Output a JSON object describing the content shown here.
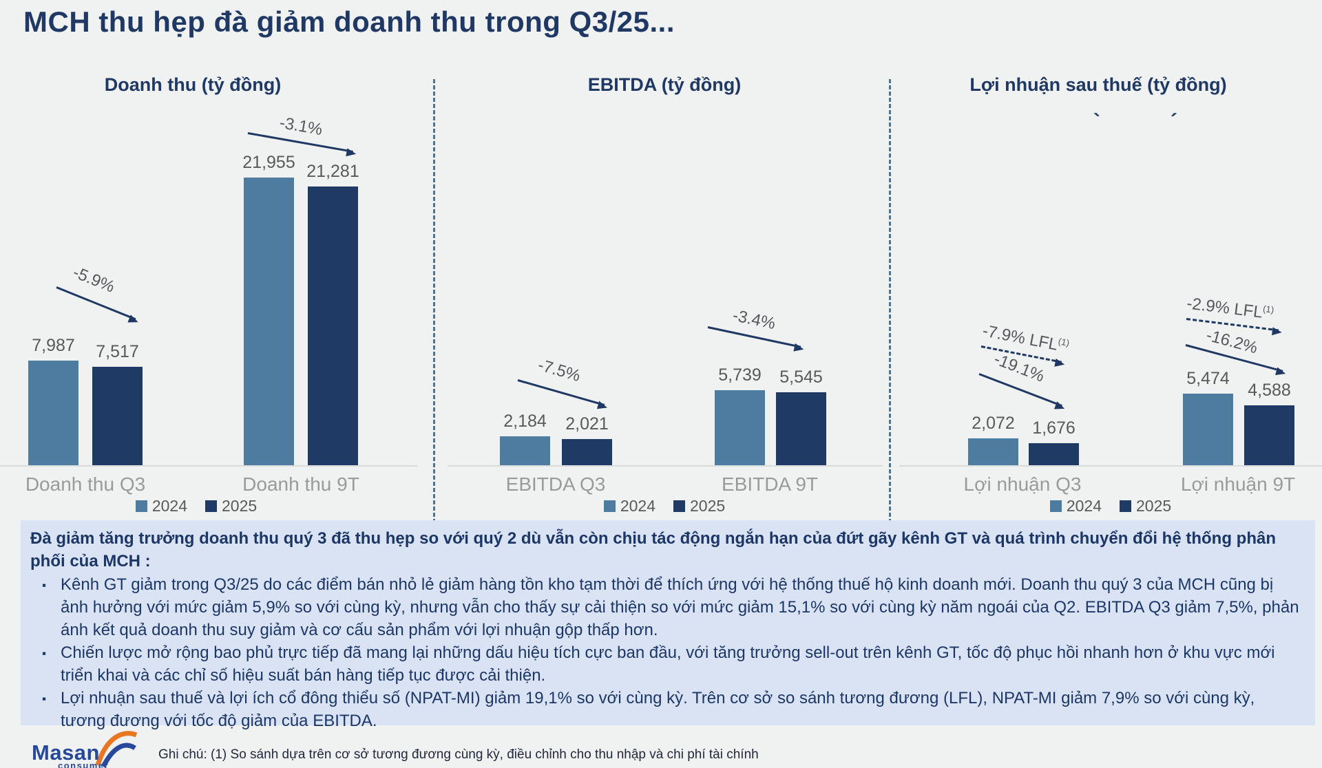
{
  "title": "MCH thu hẹp đà giảm doanh thu trong Q3/25...",
  "artifacts": {
    "grave": "`",
    "acute": "´"
  },
  "legend": {
    "y2024": "2024",
    "y2025": "2025"
  },
  "colors": {
    "background": "#f0f1f1",
    "navy": "#1f3864",
    "bar_2024": "#4e7ba0",
    "bar_2025": "#203a66",
    "note_box_bg": "#dae3f4",
    "category_label": "#9a9a9a",
    "value_label": "#595959"
  },
  "chart_data": [
    {
      "type": "bar",
      "title": "Doanh thu (tỷ đồng)",
      "categories": [
        "Doanh thu Q3",
        "Doanh thu 9T"
      ],
      "series": [
        {
          "name": "2024",
          "values": [
            7987,
            21955
          ],
          "labels": [
            "7,987",
            "21,955"
          ]
        },
        {
          "name": "2025",
          "values": [
            7517,
            21281
          ],
          "labels": [
            "7,517",
            "21,281"
          ]
        }
      ],
      "annotations": [
        {
          "group": 0,
          "label": "-5.9%",
          "style": "solid"
        },
        {
          "group": 1,
          "label": "-3.1%",
          "style": "solid"
        }
      ],
      "legend_position": "bottom",
      "grid": false
    },
    {
      "type": "bar",
      "title": "EBITDA (tỷ đồng)",
      "categories": [
        "EBITDA Q3",
        "EBITDA 9T"
      ],
      "series": [
        {
          "name": "2024",
          "values": [
            2184,
            5739
          ],
          "labels": [
            "2,184",
            "5,739"
          ]
        },
        {
          "name": "2025",
          "values": [
            2021,
            5545
          ],
          "labels": [
            "2,021",
            "5,545"
          ]
        }
      ],
      "annotations": [
        {
          "group": 0,
          "label": "-7.5%",
          "style": "solid"
        },
        {
          "group": 1,
          "label": "-3.4%",
          "style": "solid"
        }
      ],
      "legend_position": "bottom",
      "grid": false
    },
    {
      "type": "bar",
      "title": "Lợi nhuận sau thuế (tỷ đồng)",
      "categories": [
        "Lợi nhuận Q3",
        "Lợi nhuận 9T"
      ],
      "series": [
        {
          "name": "2024",
          "values": [
            2072,
            5474
          ],
          "labels": [
            "2,072",
            "5,474"
          ]
        },
        {
          "name": "2025",
          "values": [
            1676,
            4588
          ],
          "labels": [
            "1,676",
            "4,588"
          ]
        }
      ],
      "annotations": [
        {
          "group": 0,
          "label": "-7.9% LFL",
          "sup": "(1)",
          "style": "dashed"
        },
        {
          "group": 0,
          "label": "-19.1%",
          "style": "solid"
        },
        {
          "group": 1,
          "label": "-2.9% LFL",
          "sup": "(1)",
          "style": "dashed"
        },
        {
          "group": 1,
          "label": "-16.2%",
          "style": "solid"
        }
      ],
      "legend_position": "bottom",
      "grid": false
    }
  ],
  "note_box": {
    "heading": "Đà giảm tăng trưởng doanh thu quý 3 đã thu hẹp so với quý 2 dù vẫn còn chịu tác động ngắn hạn của đứt gãy kênh GT và quá trình chuyển đổi hệ thống phân phối của MCH :",
    "bullets": [
      "Kênh GT giảm trong Q3/25 do các điểm bán nhỏ lẻ giảm hàng tồn kho tạm thời để thích ứng với hệ thống thuế hộ kinh doanh mới. Doanh thu quý 3 của MCH cũng bị ảnh hưởng với mức giảm 5,9% so với cùng kỳ, nhưng vẫn cho thấy sự cải thiện so với mức giảm 15,1% so với cùng kỳ năm ngoái của Q2. EBITDA Q3 giảm 7,5%, phản ánh kết quả doanh thu suy giảm và cơ cấu sản phẩm với lợi nhuận gộp thấp hơn.",
      "Chiến lược mở rộng bao phủ trực tiếp đã mang lại những dấu hiệu tích cực ban đầu, với tăng trưởng sell-out trên kênh GT, tốc độ phục hồi nhanh hơn ở khu vực mới triển khai và các chỉ số hiệu suất bán hàng tiếp tục được cải thiện.",
      "Lợi nhuận sau thuế và lợi ích cổ đông thiểu số (NPAT-MI) giảm 19,1% so với cùng kỳ. Trên cơ sở so sánh tương đương (LFL), NPAT-MI giảm 7,9% so với cùng kỳ, tương đương với tốc độ giảm của EBITDA."
    ]
  },
  "footer": {
    "logo_text": "Masan",
    "logo_sub": "consumer",
    "note": "Ghi chú: (1) So sánh dựa trên cơ sở tương đương cùng kỳ, điều chỉnh cho thu nhập và chi phí tài chính"
  }
}
